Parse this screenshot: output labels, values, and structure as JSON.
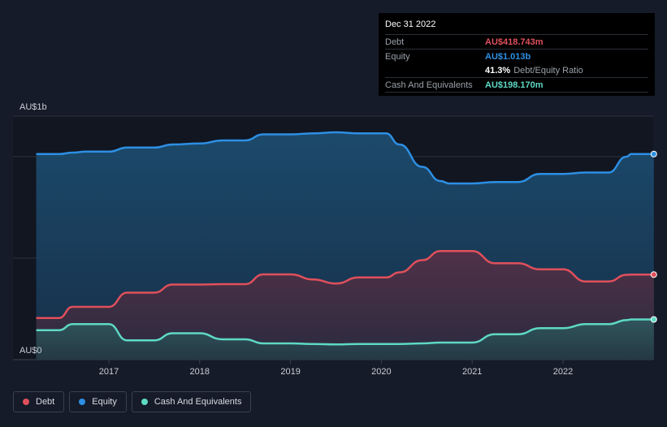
{
  "chart_data": {
    "type": "area",
    "y_axis_top_label": "AU$1b",
    "y_axis_bottom_label": "AU$0",
    "ylim": [
      0,
      1.2
    ],
    "xlim": [
      2016.2,
      2023.0
    ],
    "x_ticks": [
      2017,
      2018,
      2019,
      2020,
      2021,
      2022
    ],
    "x_tick_labels": [
      "2017",
      "2018",
      "2019",
      "2020",
      "2021",
      "2022"
    ],
    "series": [
      {
        "name": "Equity",
        "color": "#2d8fe3",
        "points": [
          [
            2016.2,
            1.013
          ],
          [
            2016.45,
            1.013
          ],
          [
            2016.6,
            1.02
          ],
          [
            2016.75,
            1.025
          ],
          [
            2017.0,
            1.025
          ],
          [
            2017.2,
            1.045
          ],
          [
            2017.5,
            1.045
          ],
          [
            2017.7,
            1.06
          ],
          [
            2018.0,
            1.065
          ],
          [
            2018.25,
            1.08
          ],
          [
            2018.5,
            1.08
          ],
          [
            2018.7,
            1.11
          ],
          [
            2019.0,
            1.11
          ],
          [
            2019.25,
            1.115
          ],
          [
            2019.5,
            1.12
          ],
          [
            2019.75,
            1.115
          ],
          [
            2020.05,
            1.115
          ],
          [
            2020.2,
            1.06
          ],
          [
            2020.45,
            0.95
          ],
          [
            2020.65,
            0.88
          ],
          [
            2020.75,
            0.868
          ],
          [
            2021.0,
            0.868
          ],
          [
            2021.25,
            0.875
          ],
          [
            2021.5,
            0.875
          ],
          [
            2021.75,
            0.915
          ],
          [
            2022.0,
            0.915
          ],
          [
            2022.25,
            0.922
          ],
          [
            2022.5,
            0.922
          ],
          [
            2022.7,
            1.0
          ],
          [
            2022.75,
            1.013
          ],
          [
            2023.0,
            1.013
          ]
        ]
      },
      {
        "name": "Debt",
        "color": "#e0505b",
        "points": [
          [
            2016.2,
            0.205
          ],
          [
            2016.45,
            0.205
          ],
          [
            2016.6,
            0.26
          ],
          [
            2016.75,
            0.26
          ],
          [
            2017.0,
            0.26
          ],
          [
            2017.2,
            0.33
          ],
          [
            2017.5,
            0.33
          ],
          [
            2017.7,
            0.37
          ],
          [
            2018.0,
            0.37
          ],
          [
            2018.25,
            0.372
          ],
          [
            2018.5,
            0.372
          ],
          [
            2018.7,
            0.42
          ],
          [
            2019.0,
            0.42
          ],
          [
            2019.25,
            0.395
          ],
          [
            2019.5,
            0.375
          ],
          [
            2019.75,
            0.405
          ],
          [
            2020.05,
            0.405
          ],
          [
            2020.2,
            0.43
          ],
          [
            2020.45,
            0.49
          ],
          [
            2020.65,
            0.535
          ],
          [
            2020.75,
            0.535
          ],
          [
            2021.0,
            0.535
          ],
          [
            2021.25,
            0.475
          ],
          [
            2021.5,
            0.475
          ],
          [
            2021.75,
            0.445
          ],
          [
            2022.0,
            0.445
          ],
          [
            2022.25,
            0.385
          ],
          [
            2022.5,
            0.385
          ],
          [
            2022.7,
            0.418
          ],
          [
            2022.75,
            0.419
          ],
          [
            2023.0,
            0.419
          ]
        ]
      },
      {
        "name": "Cash And Equivalents",
        "color": "#5ed9c4",
        "points": [
          [
            2016.2,
            0.145
          ],
          [
            2016.45,
            0.145
          ],
          [
            2016.6,
            0.175
          ],
          [
            2016.75,
            0.175
          ],
          [
            2017.0,
            0.175
          ],
          [
            2017.2,
            0.095
          ],
          [
            2017.5,
            0.095
          ],
          [
            2017.7,
            0.13
          ],
          [
            2018.0,
            0.13
          ],
          [
            2018.25,
            0.1
          ],
          [
            2018.5,
            0.1
          ],
          [
            2018.7,
            0.08
          ],
          [
            2019.0,
            0.08
          ],
          [
            2019.25,
            0.077
          ],
          [
            2019.5,
            0.075
          ],
          [
            2019.75,
            0.077
          ],
          [
            2020.05,
            0.077
          ],
          [
            2020.2,
            0.077
          ],
          [
            2020.45,
            0.08
          ],
          [
            2020.65,
            0.084
          ],
          [
            2020.75,
            0.084
          ],
          [
            2021.0,
            0.084
          ],
          [
            2021.25,
            0.125
          ],
          [
            2021.5,
            0.125
          ],
          [
            2021.75,
            0.155
          ],
          [
            2022.0,
            0.155
          ],
          [
            2022.25,
            0.175
          ],
          [
            2022.5,
            0.175
          ],
          [
            2022.7,
            0.195
          ],
          [
            2022.75,
            0.198
          ],
          [
            2023.0,
            0.198
          ]
        ]
      }
    ]
  },
  "tooltip": {
    "date": "Dec 31 2022",
    "rows": [
      {
        "label": "Debt",
        "value": "AU$418.743m",
        "color": "#e0505b"
      },
      {
        "label": "Equity",
        "value": "AU$1.013b",
        "color": "#2d8fe3"
      },
      {
        "label": "",
        "value": "41.3%",
        "extra": "Debt/Equity Ratio",
        "color": "#ffffff"
      },
      {
        "label": "Cash And Equivalents",
        "value": "AU$198.170m",
        "color": "#5ed9c4"
      }
    ]
  },
  "legend": [
    {
      "label": "Debt",
      "color": "#e0505b"
    },
    {
      "label": "Equity",
      "color": "#2d8fe3"
    },
    {
      "label": "Cash And Equivalents",
      "color": "#5ed9c4"
    }
  ]
}
